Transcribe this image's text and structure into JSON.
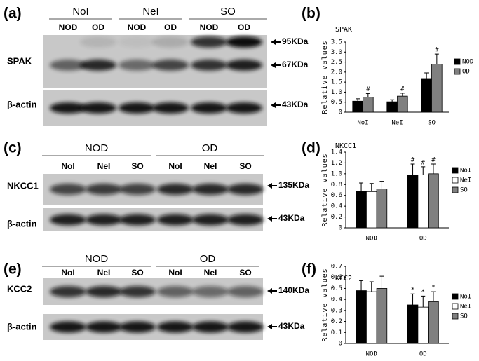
{
  "blots": [
    {
      "panel_label": "(a)",
      "groups": [
        "NoI",
        "NeI",
        "SO"
      ],
      "lanes": [
        "NOD",
        "OD",
        "NOD",
        "OD",
        "NOD",
        "OD"
      ],
      "rows": [
        {
          "label": "SPAK",
          "sizes": [
            "95KDa",
            "67KDa"
          ]
        },
        {
          "label": "β-actin",
          "sizes": [
            "43KDa"
          ]
        }
      ]
    },
    {
      "panel_label": "(c)",
      "groups": [
        "NOD",
        "OD"
      ],
      "lanes": [
        "NoI",
        "NeI",
        "SO",
        "NoI",
        "NeI",
        "SO"
      ],
      "rows": [
        {
          "label": "NKCC1",
          "sizes": [
            "135KDa"
          ]
        },
        {
          "label": "β-actin",
          "sizes": [
            "43KDa"
          ]
        }
      ]
    },
    {
      "panel_label": "(e)",
      "groups": [
        "NOD",
        "OD"
      ],
      "lanes": [
        "NoI",
        "NeI",
        "SO",
        "NoI",
        "NeI",
        "SO"
      ],
      "rows": [
        {
          "label": "KCC2",
          "sizes": [
            "140KDa"
          ]
        },
        {
          "label": "β-actin",
          "sizes": [
            "43KDa"
          ]
        }
      ]
    }
  ],
  "chart_data": [
    {
      "type": "bar",
      "panel_label": "(b)",
      "title": "SPAK",
      "y_label": "Relative values",
      "categories": [
        "NoI",
        "NeI",
        "SO"
      ],
      "series": [
        {
          "name": "NOD",
          "color": "#000000",
          "values": [
            0.55,
            0.52,
            1.68
          ],
          "errors": [
            0.12,
            0.1,
            0.28
          ]
        },
        {
          "name": "OD",
          "color": "#808080",
          "values": [
            0.75,
            0.8,
            2.4
          ],
          "errors": [
            0.18,
            0.15,
            0.5
          ],
          "value_markers": [
            "#",
            "#",
            "#"
          ]
        }
      ],
      "ylim": [
        0,
        3.5
      ],
      "yticks": [
        0,
        0.5,
        {
          "value": 1,
          "label": "1.0"
        },
        1.5,
        {
          "value": 2,
          "label": "2.0"
        },
        2.5,
        {
          "value": 3,
          "label": "3.0"
        },
        3.5
      ]
    },
    {
      "type": "bar",
      "panel_label": "(d)",
      "title": "NKCC1",
      "y_label": "Relative values",
      "categories": [
        "NOD",
        "OD"
      ],
      "series": [
        {
          "name": "NoI",
          "color": "#000000",
          "values": [
            0.68,
            0.98
          ],
          "errors": [
            0.15,
            0.2
          ],
          "value_markers": [
            null,
            "#"
          ]
        },
        {
          "name": "NeI",
          "color": "#ffffff",
          "values": [
            0.67,
            0.98
          ],
          "errors": [
            0.15,
            0.15
          ],
          "value_markers": [
            null,
            "#"
          ]
        },
        {
          "name": "SO",
          "color": "#808080",
          "values": [
            0.72,
            1.0
          ],
          "errors": [
            0.14,
            0.18
          ],
          "value_markers": [
            null,
            "#"
          ]
        }
      ],
      "ylim": [
        0,
        1.4
      ],
      "yticks": [
        0,
        0.2,
        0.4,
        0.6,
        0.8,
        {
          "value": 1,
          "label": "1.0"
        },
        1.2,
        1.4
      ]
    },
    {
      "type": "bar",
      "panel_label": "(f)",
      "title": "KCC2",
      "y_label": "Relative values",
      "categories": [
        "NOD",
        "OD"
      ],
      "series": [
        {
          "name": "NoI",
          "color": "#000000",
          "values": [
            0.48,
            0.35
          ],
          "errors": [
            0.09,
            0.1
          ],
          "value_markers": [
            null,
            "*"
          ]
        },
        {
          "name": "NeI",
          "color": "#ffffff",
          "values": [
            0.47,
            0.33
          ],
          "errors": [
            0.09,
            0.1
          ],
          "value_markers": [
            null,
            "*"
          ]
        },
        {
          "name": "SO",
          "color": "#808080",
          "values": [
            0.5,
            0.38
          ],
          "errors": [
            0.11,
            0.09
          ],
          "value_markers": [
            null,
            "*"
          ]
        }
      ],
      "ylim": [
        0,
        0.7
      ],
      "yticks": [
        0,
        0.1,
        0.2,
        0.3,
        0.4,
        0.5,
        0.6,
        0.7
      ]
    }
  ]
}
